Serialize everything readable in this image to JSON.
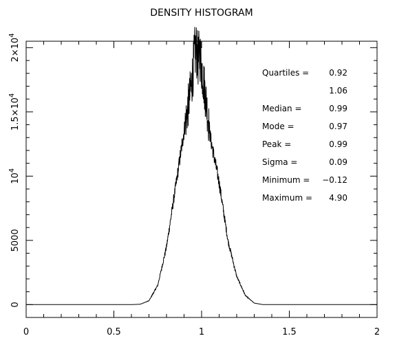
{
  "chart_data": {
    "type": "line",
    "title": "DENSITY HISTOGRAM",
    "xlabel": "",
    "ylabel": "",
    "xlim": [
      0,
      2
    ],
    "ylim": [
      -1000,
      20500
    ],
    "grid": false,
    "x_ticks": [
      {
        "value": 0,
        "label": "0"
      },
      {
        "value": 0.5,
        "label": "0.5"
      },
      {
        "value": 1,
        "label": "1"
      },
      {
        "value": 1.5,
        "label": "1.5"
      },
      {
        "value": 2,
        "label": "2"
      }
    ],
    "y_ticks": [
      {
        "value": 0,
        "label": "0"
      },
      {
        "value": 5000,
        "label": "5000"
      },
      {
        "value": 10000,
        "label": "10",
        "exp": "4"
      },
      {
        "value": 15000,
        "label": "1.5×10",
        "exp": "4"
      },
      {
        "value": 20000,
        "label": "2×10",
        "exp": "4"
      }
    ],
    "series": [
      {
        "x": [
          0,
          0.6,
          0.65,
          0.7,
          0.75,
          0.8,
          0.85,
          0.9,
          0.93,
          0.95,
          0.96,
          0.97,
          0.98,
          0.99,
          1.0,
          1.02,
          1.05,
          1.1,
          1.15,
          1.2,
          1.25,
          1.3,
          1.35,
          1.4,
          2
        ],
        "values": [
          0,
          0,
          30,
          300,
          1500,
          4500,
          9000,
          13500,
          16000,
          18000,
          19500,
          19800,
          19000,
          19600,
          18500,
          16500,
          13000,
          9500,
          5000,
          2200,
          700,
          120,
          0,
          0,
          0
        ]
      }
    ],
    "stats": [
      {
        "label": "Quartiles =",
        "value": "0.92"
      },
      {
        "label": "",
        "value": "1.06"
      },
      {
        "label": "Median    =",
        "value": "0.99"
      },
      {
        "label": "Mode      =",
        "value": "0.97"
      },
      {
        "label": "Peak      =",
        "value": "0.99"
      },
      {
        "label": "Sigma     =",
        "value": "0.09"
      },
      {
        "label": "Minimum =",
        "value": "−0.12"
      },
      {
        "label": "Maximum =",
        "value": "4.90"
      }
    ]
  }
}
